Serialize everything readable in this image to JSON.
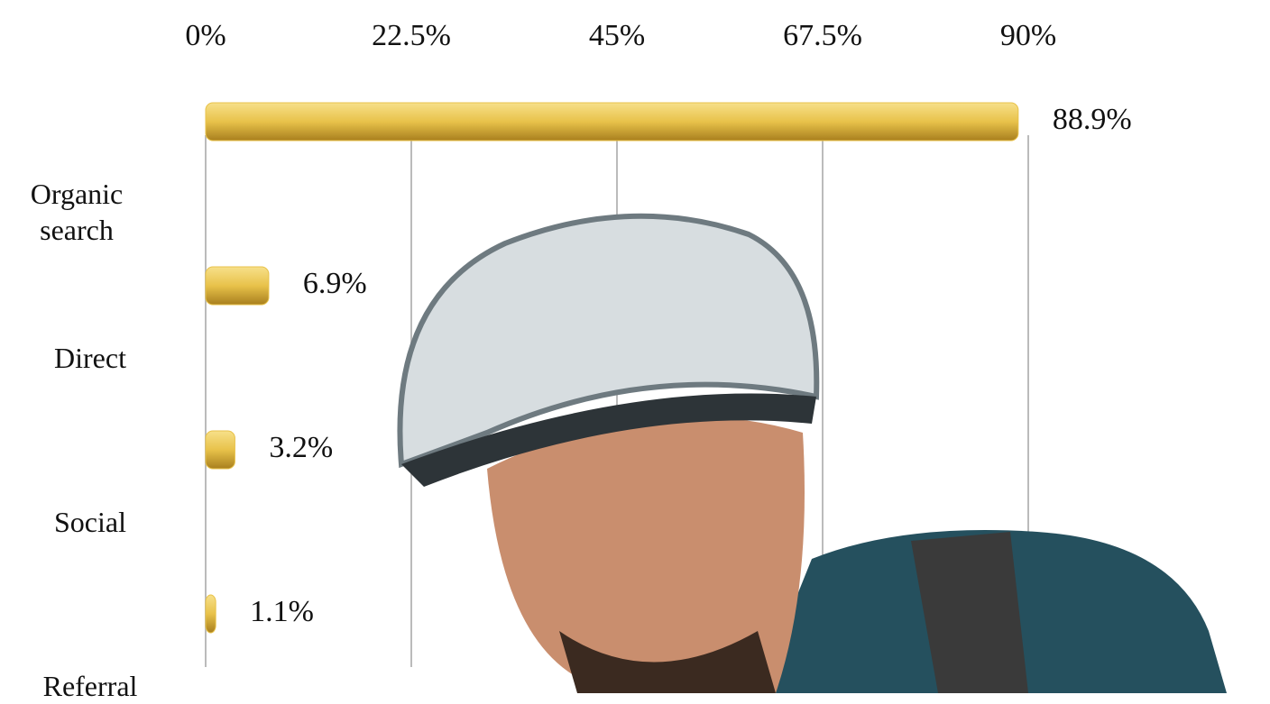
{
  "chart_data": {
    "type": "bar",
    "orientation": "horizontal",
    "categories": [
      "Organic search",
      "Direct",
      "Social",
      "Referral"
    ],
    "values": [
      88.9,
      6.9,
      3.2,
      1.1
    ],
    "value_labels": [
      "88.9%",
      "6.9%",
      "3.2%",
      "1.1%"
    ],
    "color": "#e8c24a",
    "xlim": [
      0,
      90
    ],
    "xticks": [
      {
        "value": 0,
        "label": "0%"
      },
      {
        "value": 22.5,
        "label": "22.5%"
      },
      {
        "value": 45,
        "label": "45%"
      },
      {
        "value": 67.5,
        "label": "67.5%"
      },
      {
        "value": 90,
        "label": "90%"
      }
    ],
    "grid": true
  }
}
